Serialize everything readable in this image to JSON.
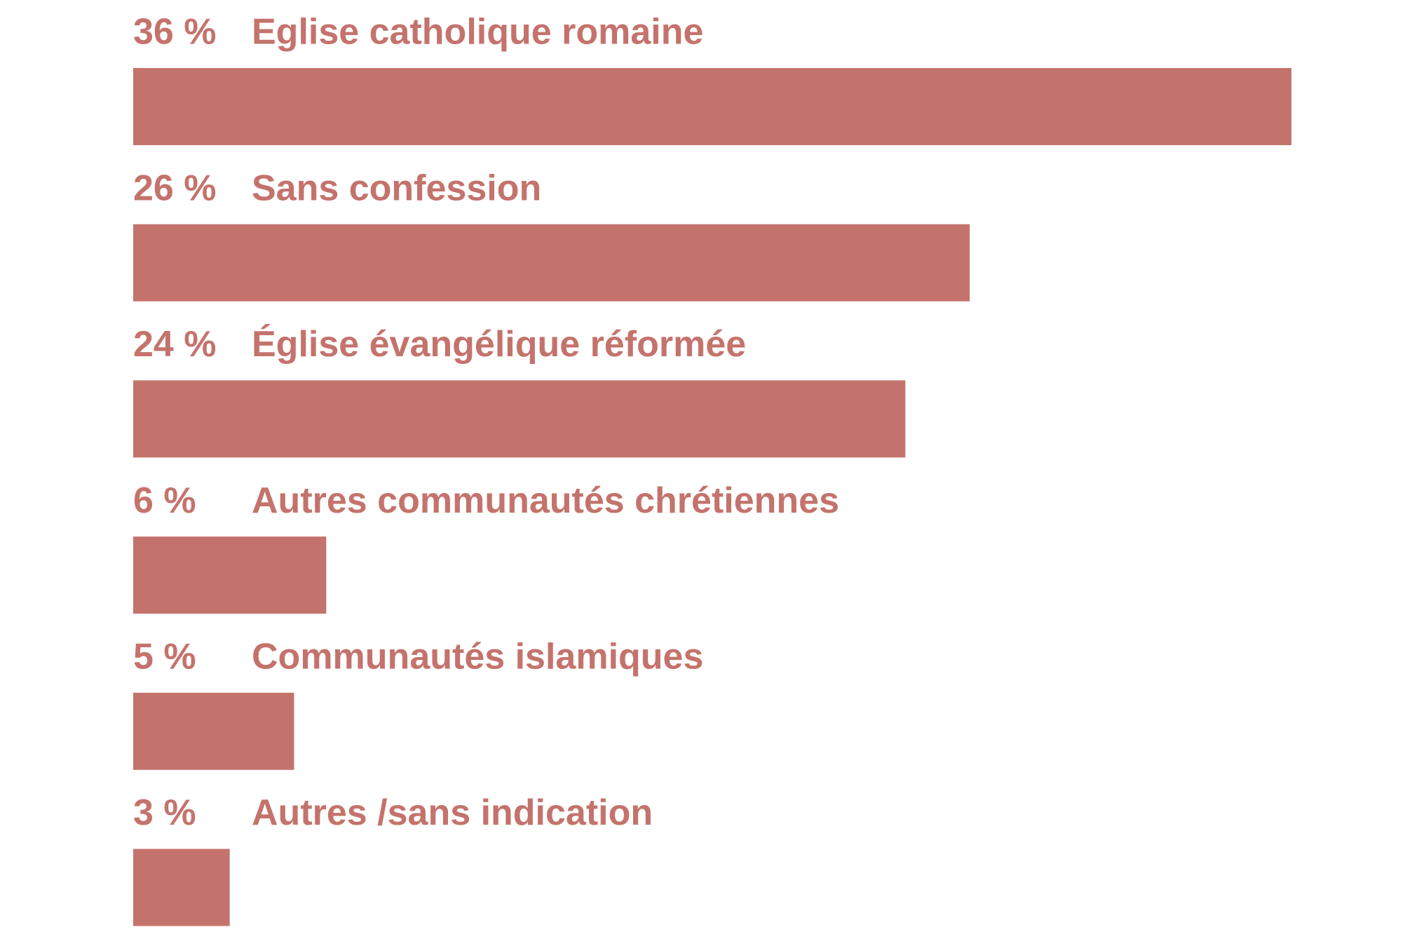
{
  "chart_data": {
    "type": "bar",
    "orientation": "horizontal",
    "categories": [
      "Eglise catholique romaine",
      "Sans confession",
      "Église évangélique réformée",
      "Autres communautés chrétiennes",
      "Communautés islamiques",
      "Autres /sans indication"
    ],
    "values": [
      36,
      26,
      24,
      6,
      5,
      3
    ],
    "value_labels": [
      "36 %",
      "26 %",
      "24 %",
      "6 %",
      "5 %",
      "3 %"
    ],
    "color": "#c4736c"
  }
}
